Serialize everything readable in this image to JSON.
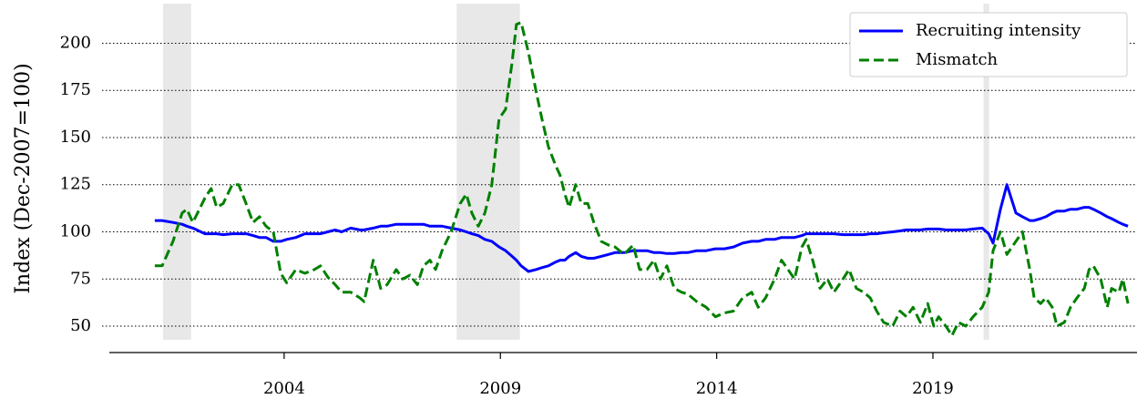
{
  "chart_data": {
    "type": "line",
    "y_label": "Index (Dec-2007=100)",
    "x": [
      2001.01,
      2001.18,
      2001.43,
      2001.64,
      2001.75,
      2001.89,
      2002.17,
      2002.31,
      2002.44,
      2002.59,
      2002.8,
      2002.95,
      2003.12,
      2003.28,
      2003.43,
      2003.58,
      2003.75,
      2003.92,
      2004.06,
      2004.27,
      2004.48,
      2004.7,
      2004.84,
      2005.01,
      2005.18,
      2005.33,
      2005.54,
      2005.75,
      2005.85,
      2006.06,
      2006.23,
      2006.38,
      2006.59,
      2006.74,
      2006.91,
      2007.08,
      2007.22,
      2007.37,
      2007.5,
      2007.65,
      2007.86,
      2008.07,
      2008.21,
      2008.34,
      2008.49,
      2008.64,
      2008.8,
      2008.97,
      2009.12,
      2009.27,
      2009.37,
      2009.48,
      2009.65,
      2009.82,
      2009.96,
      2010.11,
      2010.28,
      2010.38,
      2010.49,
      2010.59,
      2010.74,
      2010.87,
      2011.02,
      2011.16,
      2011.33,
      2011.5,
      2011.65,
      2011.86,
      2012.07,
      2012.22,
      2012.39,
      2012.55,
      2012.7,
      2012.85,
      2013.02,
      2013.19,
      2013.33,
      2013.54,
      2013.76,
      2013.97,
      2014.18,
      2014.39,
      2014.6,
      2014.81,
      2014.96,
      2015.13,
      2015.34,
      2015.5,
      2015.65,
      2015.8,
      2015.97,
      2016.07,
      2016.22,
      2016.39,
      2016.56,
      2016.71,
      2016.92,
      2017.06,
      2017.23,
      2017.4,
      2017.55,
      2017.7,
      2017.86,
      2018.07,
      2018.24,
      2018.39,
      2018.54,
      2018.71,
      2018.88,
      2019.02,
      2019.13,
      2019.3,
      2019.44,
      2019.59,
      2019.76,
      2019.93,
      2020.14,
      2020.29,
      2020.39,
      2020.56,
      2020.71,
      2020.92,
      2021.07,
      2021.24,
      2021.34,
      2021.49,
      2021.61,
      2021.76,
      2021.87,
      2022.04,
      2022.18,
      2022.33,
      2022.5,
      2022.61,
      2022.71,
      2022.88,
      2023.03,
      2023.13,
      2023.3,
      2023.39,
      2023.51
    ],
    "series": [
      {
        "name": "Recruiting intensity",
        "color": "#0000ff",
        "dash": "solid",
        "values": [
          106,
          106,
          105,
          104,
          103,
          102,
          99,
          99,
          99,
          98.5,
          99,
          99,
          99,
          98,
          97,
          97,
          95,
          95,
          96,
          97,
          99,
          99,
          99,
          100,
          101,
          100,
          102,
          101,
          101,
          102,
          103,
          103,
          104,
          104,
          104,
          104,
          104,
          103,
          103,
          103,
          102,
          101,
          100,
          99,
          98,
          96,
          95,
          92,
          90,
          87,
          85,
          82,
          79,
          80,
          81,
          82,
          84,
          85,
          85,
          87,
          89,
          87,
          86,
          86,
          87,
          88,
          89,
          89,
          90,
          90,
          90,
          89,
          89,
          88.5,
          88.5,
          89,
          89,
          90,
          90,
          91,
          91,
          92,
          94,
          95,
          95,
          96,
          96,
          97,
          97,
          97,
          98,
          99,
          99,
          99,
          99,
          99,
          98.5,
          98.5,
          98.5,
          98.5,
          99,
          99,
          99.5,
          100,
          100.5,
          101,
          101,
          101,
          101.5,
          101.5,
          101.5,
          101,
          101,
          101,
          101,
          101.5,
          102,
          99,
          94,
          112,
          125,
          110,
          108,
          106,
          106,
          107,
          108,
          110,
          111,
          111,
          112,
          112,
          113,
          113,
          112,
          110,
          108,
          107,
          105,
          104,
          103
        ]
      },
      {
        "name": "Mismatch",
        "color": "#008000",
        "dash": "dashed",
        "values": [
          82,
          82,
          95,
          110,
          112,
          105,
          118,
          123,
          113,
          115,
          125,
          125,
          115,
          105,
          108,
          103,
          100,
          78,
          73,
          80,
          78,
          80,
          82,
          76,
          72,
          68,
          68,
          65,
          63,
          85,
          70,
          72,
          80,
          75,
          77,
          72,
          82,
          85,
          80,
          90,
          100,
          115,
          120,
          110,
          103,
          110,
          125,
          160,
          165,
          190,
          210,
          211,
          195,
          175,
          160,
          145,
          135,
          130,
          120,
          113,
          125,
          115,
          115,
          105,
          95,
          93,
          92,
          88,
          93,
          80,
          80,
          85,
          75,
          82,
          70,
          68,
          67,
          63,
          60,
          55,
          57,
          58,
          65,
          68,
          60,
          65,
          75,
          85,
          80,
          75,
          92,
          96,
          85,
          70,
          75,
          68,
          75,
          80,
          70,
          68,
          65,
          58,
          52,
          50,
          58,
          55,
          60,
          52,
          62,
          50,
          55,
          50,
          45,
          52,
          50,
          55,
          60,
          68,
          90,
          100,
          88,
          95,
          100,
          80,
          65,
          62,
          65,
          60,
          50,
          52,
          60,
          65,
          70,
          80,
          82,
          75,
          60,
          70,
          68,
          75,
          62
        ]
      }
    ],
    "xlim": [
      2000,
      2023.55
    ],
    "xticks": [
      2004,
      2009,
      2014,
      2019
    ],
    "ylim": [
      36,
      221
    ],
    "yticks": [
      50,
      75,
      100,
      125,
      150,
      175,
      200
    ],
    "grid": true,
    "legend": "upper right",
    "shaded_regions": [
      [
        2001.2,
        2001.85
      ],
      [
        2007.99,
        2009.45
      ],
      [
        2020.17,
        2020.3
      ]
    ],
    "shade_color": "#e8e8e8"
  }
}
